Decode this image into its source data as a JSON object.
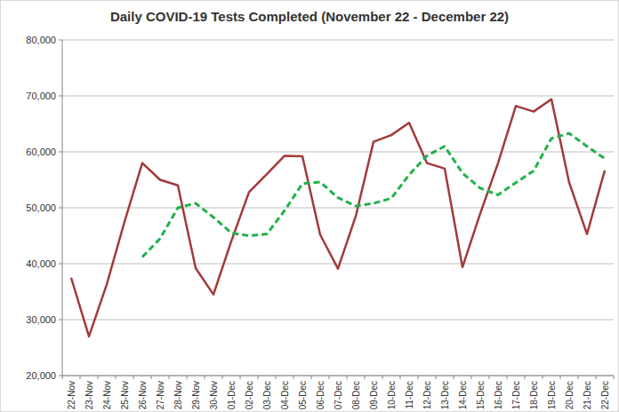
{
  "chart_data": {
    "type": "line",
    "title": "Daily COVID-19 Tests Completed (November 22 - December 22)",
    "categories": [
      "22-Nov",
      "23-Nov",
      "24-Nov",
      "25-Nov",
      "26-Nov",
      "27-Nov",
      "28-Nov",
      "29-Nov",
      "30-Nov",
      "01-Dec",
      "02-Dec",
      "03-Dec",
      "04-Dec",
      "05-Dec",
      "06-Dec",
      "07-Dec",
      "08-Dec",
      "09-Dec",
      "10-Dec",
      "11-Dec",
      "12-Dec",
      "13-Dec",
      "14-Dec",
      "15-Dec",
      "16-Dec",
      "17-Dec",
      "18-Dec",
      "19-Dec",
      "20-Dec",
      "21-Dec",
      "22-Dec"
    ],
    "series": [
      {
        "color": "#a33a3a",
        "line_style": "solid",
        "values": [
          37500,
          27000,
          36300,
          47500,
          58000,
          55000,
          54000,
          39200,
          34500,
          44000,
          52800,
          56000,
          59300,
          59200,
          45200,
          39100,
          48500,
          61800,
          63000,
          65200,
          58000,
          57000,
          39400,
          49000,
          58000,
          68200,
          67200,
          69400,
          54500,
          45300,
          56700
        ]
      },
      {
        "color": "#22b14c",
        "line_style": "dashed",
        "values": [
          null,
          null,
          null,
          null,
          41200,
          44500,
          50000,
          50800,
          48300,
          45500,
          45000,
          45300,
          49500,
          54300,
          54600,
          51800,
          50300,
          50800,
          51700,
          55900,
          59300,
          61000,
          56200,
          53500,
          52300,
          54500,
          56600,
          62400,
          63300,
          61000,
          58800
        ]
      }
    ],
    "ylim": [
      20000,
      80000
    ],
    "yticks": [
      {
        "value": 20000,
        "label": "20,000"
      },
      {
        "value": 30000,
        "label": "30,000"
      },
      {
        "value": 40000,
        "label": "40,000"
      },
      {
        "value": 50000,
        "label": "50,000"
      },
      {
        "value": 60000,
        "label": "60,000"
      },
      {
        "value": 70000,
        "label": "70,000"
      },
      {
        "value": 80000,
        "label": "80,000"
      }
    ],
    "grid": true
  }
}
